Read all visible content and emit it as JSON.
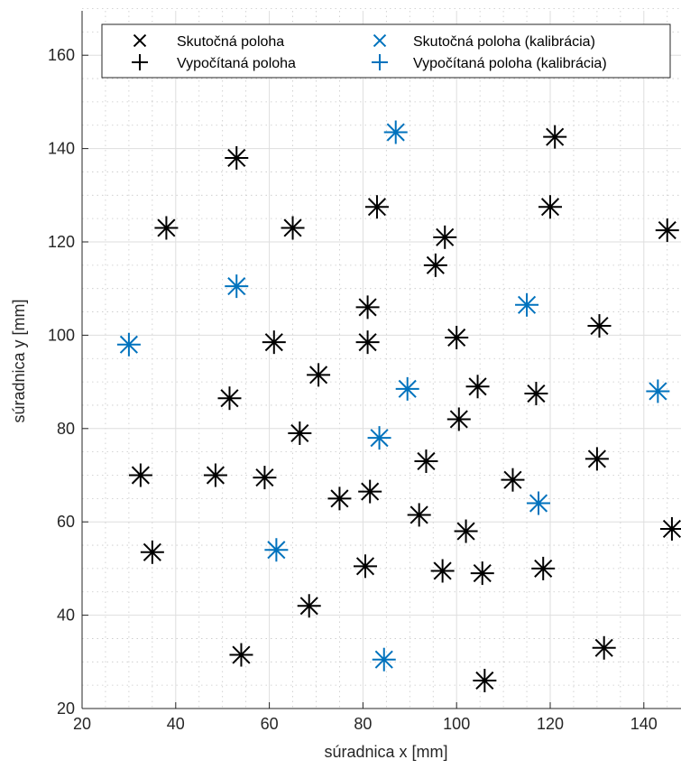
{
  "chart_data": {
    "type": "scatter",
    "title": "",
    "xlabel": "súradnica x [mm]",
    "ylabel": "súradnica y [mm]",
    "xlim": [
      20,
      147
    ],
    "ylim": [
      20,
      170
    ],
    "xticks": [
      20,
      40,
      60,
      80,
      100,
      120,
      140
    ],
    "yticks": [
      20,
      40,
      60,
      80,
      100,
      120,
      140,
      160
    ],
    "grid": "on (major solid, minor dotted)",
    "legend_placement": "top",
    "colors": {
      "normal": "#000000",
      "calibration": "#0072BD"
    },
    "legend": [
      {
        "label": "Skutočná poloha",
        "marker": "x",
        "color": "#000000"
      },
      {
        "label": "Vypočítaná poloha",
        "marker": "+",
        "color": "#000000"
      },
      {
        "label": "Skutočná poloha (kalibrácia)",
        "marker": "x",
        "color": "#0072BD"
      },
      {
        "label": "Vypočítaná poloha (kalibrácia)",
        "marker": "+",
        "color": "#0072BD"
      }
    ],
    "series": [
      {
        "name": "Skutočná poloha",
        "marker": "x",
        "color": "#000000",
        "points": [
          [
            121,
            142.5
          ],
          [
            53,
            138
          ],
          [
            83,
            127.5
          ],
          [
            120,
            127.5
          ],
          [
            38,
            123
          ],
          [
            65,
            123
          ],
          [
            97.5,
            121
          ],
          [
            145,
            122.5
          ],
          [
            95.5,
            115
          ],
          [
            81,
            106
          ],
          [
            130.5,
            102
          ],
          [
            61,
            98.5
          ],
          [
            81,
            98.5
          ],
          [
            100,
            99.5
          ],
          [
            70.5,
            91.5
          ],
          [
            51.5,
            86.5
          ],
          [
            104.5,
            89
          ],
          [
            117,
            87.5
          ],
          [
            66.5,
            79
          ],
          [
            100.5,
            82
          ],
          [
            32.5,
            70
          ],
          [
            48.5,
            70
          ],
          [
            59,
            69.5
          ],
          [
            93.5,
            73
          ],
          [
            112,
            69
          ],
          [
            130,
            73.5
          ],
          [
            75,
            65
          ],
          [
            81.5,
            66.5
          ],
          [
            92,
            61.5
          ],
          [
            102,
            58
          ],
          [
            146,
            58.5
          ],
          [
            35,
            53.5
          ],
          [
            80.5,
            50.5
          ],
          [
            97,
            49.5
          ],
          [
            105.5,
            49
          ],
          [
            118.5,
            50
          ],
          [
            68.5,
            42
          ],
          [
            54,
            31.5
          ],
          [
            131.5,
            33
          ],
          [
            106,
            26
          ]
        ]
      },
      {
        "name": "Vypočítaná poloha",
        "marker": "+",
        "color": "#000000",
        "points": [
          [
            121,
            142.5
          ],
          [
            53,
            138
          ],
          [
            83,
            127.5
          ],
          [
            120,
            127.5
          ],
          [
            38,
            123
          ],
          [
            65,
            123
          ],
          [
            97.5,
            121
          ],
          [
            145,
            122.5
          ],
          [
            95.5,
            115
          ],
          [
            81,
            106
          ],
          [
            130.5,
            102
          ],
          [
            61,
            98.5
          ],
          [
            81,
            98.5
          ],
          [
            100,
            99.5
          ],
          [
            70.5,
            91.5
          ],
          [
            51.5,
            86.5
          ],
          [
            104.5,
            89
          ],
          [
            117,
            87.5
          ],
          [
            66.5,
            79
          ],
          [
            100.5,
            82
          ],
          [
            32.5,
            70
          ],
          [
            48.5,
            70
          ],
          [
            59,
            69.5
          ],
          [
            93.5,
            73
          ],
          [
            112,
            69
          ],
          [
            130,
            73.5
          ],
          [
            75,
            65
          ],
          [
            81.5,
            66.5
          ],
          [
            92,
            61.5
          ],
          [
            102,
            58
          ],
          [
            146,
            58.5
          ],
          [
            35,
            53.5
          ],
          [
            80.5,
            50.5
          ],
          [
            97,
            49.5
          ],
          [
            105.5,
            49
          ],
          [
            118.5,
            50
          ],
          [
            68.5,
            42
          ],
          [
            54,
            31.5
          ],
          [
            131.5,
            33
          ],
          [
            106,
            26
          ]
        ]
      },
      {
        "name": "Skutočná poloha (kalibrácia)",
        "marker": "x",
        "color": "#0072BD",
        "points": [
          [
            87,
            143.5
          ],
          [
            53,
            110.5
          ],
          [
            30,
            98
          ],
          [
            115,
            106.5
          ],
          [
            89.5,
            88.5
          ],
          [
            143,
            88
          ],
          [
            83.5,
            78
          ],
          [
            117.5,
            64
          ],
          [
            61.5,
            54
          ],
          [
            84.5,
            30.5
          ]
        ]
      },
      {
        "name": "Vypočítaná poloha (kalibrácia)",
        "marker": "+",
        "color": "#0072BD",
        "points": [
          [
            87,
            143.5
          ],
          [
            53,
            110.5
          ],
          [
            30,
            98
          ],
          [
            115,
            106.5
          ],
          [
            89.5,
            88.5
          ],
          [
            143,
            88
          ],
          [
            83.5,
            78
          ],
          [
            117.5,
            64
          ],
          [
            61.5,
            54
          ],
          [
            84.5,
            30.5
          ]
        ]
      }
    ]
  }
}
